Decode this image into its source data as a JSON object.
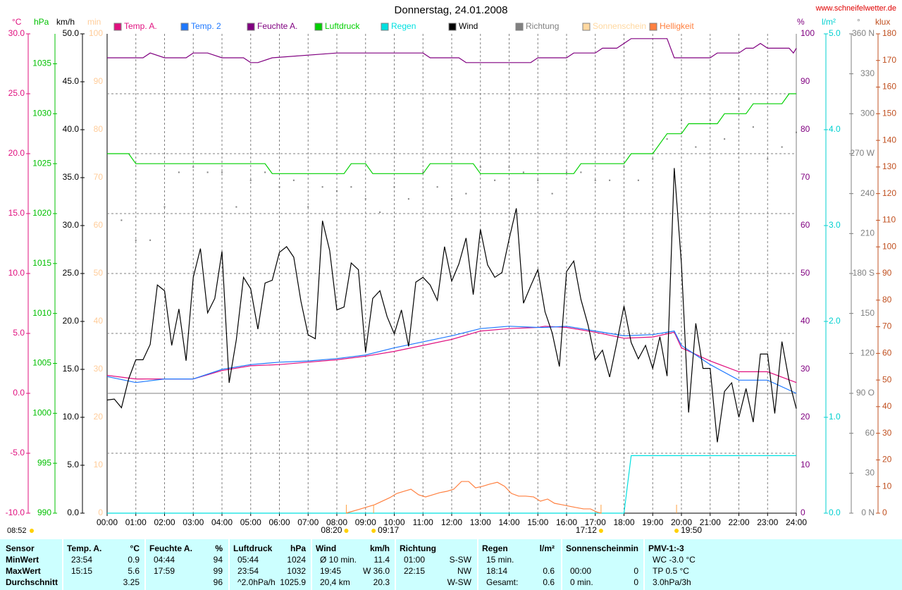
{
  "chart_data": {
    "type": "line",
    "title": "Donnerstag, 24.01.2008",
    "site": "www.schneifelwetter.de",
    "footnote": "08:52",
    "xlim": [
      0,
      24
    ],
    "xticks": [
      {
        "value": 0,
        "label": "00:00"
      },
      {
        "value": 1,
        "label": "01:00"
      },
      {
        "value": 2,
        "label": "02:00"
      },
      {
        "value": 3,
        "label": "03:00"
      },
      {
        "value": 4,
        "label": "04:00"
      },
      {
        "value": 5,
        "label": "05:00"
      },
      {
        "value": 6,
        "label": "06:00"
      },
      {
        "value": 7,
        "label": "07:00"
      },
      {
        "value": 8,
        "label": "08:00"
      },
      {
        "value": 9,
        "label": "09:00"
      },
      {
        "value": 10,
        "label": "10:00"
      },
      {
        "value": 11,
        "label": "11:00"
      },
      {
        "value": 12,
        "label": "12:00"
      },
      {
        "value": 13,
        "label": "13:00"
      },
      {
        "value": 14,
        "label": "14:00"
      },
      {
        "value": 15,
        "label": "15:00"
      },
      {
        "value": 16,
        "label": "16:00"
      },
      {
        "value": 17,
        "label": "17:00"
      },
      {
        "value": 18,
        "label": "18:00"
      },
      {
        "value": 19,
        "label": "19:00"
      },
      {
        "value": 20,
        "label": "20:00"
      },
      {
        "value": 21,
        "label": "21:00"
      },
      {
        "value": 22,
        "label": "22:00"
      },
      {
        "value": 23,
        "label": "23:00"
      },
      {
        "value": 24,
        "label": "24:00"
      }
    ],
    "grid": true,
    "ylabel": "°C",
    "ycolor": "#e0107f",
    "ylim": [
      -10,
      30
    ],
    "yticks": [
      {
        "value": -10,
        "label": "-10.0"
      },
      {
        "value": -5,
        "label": "-5.0"
      },
      {
        "value": 0,
        "label": "0.0"
      },
      {
        "value": 5,
        "label": "5.0"
      },
      {
        "value": 10,
        "label": "10.0"
      },
      {
        "value": 15,
        "label": "15.0"
      },
      {
        "value": 20,
        "label": "20.0"
      },
      {
        "value": 25,
        "label": "25.0"
      },
      {
        "value": 30,
        "label": "30.0"
      }
    ],
    "y2label": "hPa",
    "y2color": "#00c000",
    "y2lim": [
      990,
      1038
    ],
    "y2ticks": [
      990,
      995,
      1000,
      1005,
      1010,
      1015,
      1020,
      1025,
      1030,
      1035
    ],
    "y3label": "km/h",
    "y3color": "#000000",
    "y3lim": [
      0,
      50
    ],
    "y3ticks": [
      {
        "value": 0,
        "label": "0.0"
      },
      {
        "value": 5,
        "label": "5.0"
      },
      {
        "value": 10,
        "label": "10.0"
      },
      {
        "value": 15,
        "label": "15.0"
      },
      {
        "value": 20,
        "label": "20.0"
      },
      {
        "value": 25,
        "label": "25.0"
      },
      {
        "value": 30,
        "label": "30.0"
      },
      {
        "value": 35,
        "label": "35.0"
      },
      {
        "value": 40,
        "label": "40.0"
      },
      {
        "value": 45,
        "label": "45.0"
      },
      {
        "value": 50,
        "label": "50.0"
      }
    ],
    "y4label": "min",
    "y4color": "#ffcc99",
    "y4lim": [
      0,
      100
    ],
    "y4ticks": [
      0,
      10,
      20,
      30,
      40,
      50,
      60,
      70,
      80,
      90,
      100
    ],
    "y5label": "%",
    "y5color": "#800080",
    "y5lim": [
      0,
      100
    ],
    "y5ticks": [
      0,
      10,
      20,
      30,
      40,
      50,
      60,
      70,
      80,
      90,
      100
    ],
    "y6label": "l/m²",
    "y6color": "#00d0d0",
    "y6lim": [
      0,
      5
    ],
    "y6ticks": [
      {
        "value": 0,
        "label": "0.0"
      },
      {
        "value": 1,
        "label": "1.0"
      },
      {
        "value": 2,
        "label": "2.0"
      },
      {
        "value": 3,
        "label": "3.0"
      },
      {
        "value": 4,
        "label": "4.0"
      },
      {
        "value": 5,
        "label": "5.0"
      }
    ],
    "y7label": "°",
    "y7color": "#808080",
    "y7lim": [
      0,
      360
    ],
    "y7ticks": [
      {
        "value": 0,
        "label": "0 N"
      },
      30,
      60,
      {
        "value": 90,
        "label": "90 O"
      },
      120,
      150,
      {
        "value": 180,
        "label": "180 S"
      },
      210,
      240,
      {
        "value": 270,
        "label": "270 W"
      },
      300,
      330,
      {
        "value": 360,
        "label": "360 N"
      }
    ],
    "y8label": "klux",
    "y8color": "#c05020",
    "y8lim": [
      0,
      180
    ],
    "y8ticks": [
      0,
      10,
      20,
      30,
      40,
      50,
      60,
      70,
      80,
      90,
      100,
      110,
      120,
      130,
      140,
      150,
      160,
      170,
      180
    ],
    "annotations": [
      {
        "x": 8.33,
        "label": "08:20"
      },
      {
        "x": 9.28,
        "label": "09:17"
      },
      {
        "x": 17.2,
        "label": "17:12"
      },
      {
        "x": 19.83,
        "label": "19:50"
      }
    ],
    "series": [
      {
        "name": "Temp. A.",
        "color": "#e0107f",
        "axis": "y",
        "x": [
          0,
          1,
          2,
          3,
          4,
          5,
          6,
          7,
          8,
          9,
          10,
          11,
          12,
          13,
          14,
          15,
          15.25,
          16,
          17,
          18,
          19,
          19.75,
          20,
          21,
          22,
          23,
          24
        ],
        "values": [
          1.5,
          1.2,
          1.2,
          1.2,
          1.9,
          2.3,
          2.4,
          2.6,
          2.8,
          3.1,
          3.5,
          4.0,
          4.5,
          5.2,
          5.4,
          5.5,
          5.6,
          5.5,
          5.1,
          4.6,
          4.7,
          5.1,
          3.8,
          2.7,
          1.8,
          1.8,
          0.9
        ]
      },
      {
        "name": "Temp. 2",
        "color": "#1e78ff",
        "axis": "y",
        "x": [
          0,
          1,
          2,
          3,
          4,
          5,
          6,
          7,
          8,
          9,
          10,
          11,
          12,
          13,
          14,
          15,
          15.25,
          16,
          17,
          18,
          19,
          19.75,
          20,
          21,
          22,
          23,
          24
        ],
        "values": [
          1.4,
          0.9,
          1.2,
          1.2,
          2.0,
          2.4,
          2.6,
          2.7,
          2.9,
          3.2,
          3.8,
          4.3,
          4.8,
          5.4,
          5.6,
          5.5,
          5.5,
          5.6,
          5.2,
          4.8,
          4.9,
          5.2,
          4.0,
          2.4,
          1.1,
          1.1,
          0.0
        ]
      },
      {
        "name": "Feuchte A.",
        "color": "#800080",
        "axis": "y5",
        "x": [
          0,
          1.25,
          1.5,
          2,
          2.75,
          3,
          3.5,
          4,
          4.75,
          5,
          5.25,
          5.75,
          8,
          11,
          11.25,
          12.25,
          12.5,
          14.75,
          15,
          16,
          16.25,
          17,
          17.25,
          17.75,
          18,
          18.25,
          19.5,
          19.75,
          21,
          21.25,
          22,
          22.25,
          22.5,
          22.75,
          23,
          23.75,
          23.9,
          24
        ],
        "values": [
          95,
          95,
          96,
          95,
          95,
          96,
          96,
          95,
          95,
          94,
          94,
          95,
          96,
          96,
          95,
          95,
          94,
          94,
          95,
          95,
          96,
          96,
          97,
          97,
          98,
          99,
          99,
          95,
          95,
          96,
          96,
          97,
          97,
          98,
          97,
          97,
          96,
          97
        ]
      },
      {
        "name": "Luftdruck",
        "color": "#00d000",
        "axis": "y2",
        "x": [
          0,
          0.75,
          1,
          5.5,
          5.75,
          8.25,
          8.5,
          9,
          9.25,
          11,
          11.25,
          12.75,
          13,
          16.25,
          16.5,
          18,
          18.25,
          19,
          19.25,
          19.5,
          20,
          20.25,
          21.25,
          21.5,
          22.25,
          22.5,
          23.5,
          23.75,
          24
        ],
        "values": [
          1026,
          1026,
          1025,
          1025,
          1024,
          1024,
          1025,
          1025,
          1024,
          1024,
          1025,
          1025,
          1024,
          1024,
          1025,
          1025,
          1026,
          1026,
          1027,
          1028,
          1028,
          1029,
          1029,
          1030,
          1030,
          1031,
          1031,
          1032,
          1032
        ]
      },
      {
        "name": "Regen",
        "color": "#00e0e0",
        "axis": "y6",
        "x": [
          0,
          18,
          18.25,
          24
        ],
        "values": [
          0,
          0,
          0.6,
          0.6
        ]
      },
      {
        "name": "Wind",
        "color": "#000000",
        "axis": "y3",
        "x": [
          0,
          0.25,
          0.5,
          0.75,
          1,
          1.25,
          1.5,
          1.75,
          2,
          2.25,
          2.5,
          2.75,
          3,
          3.25,
          3.5,
          3.75,
          4,
          4.25,
          4.5,
          4.75,
          5,
          5.25,
          5.5,
          5.75,
          6,
          6.25,
          6.5,
          6.75,
          7,
          7.25,
          7.5,
          7.75,
          8,
          8.25,
          8.5,
          8.75,
          9,
          9.25,
          9.5,
          9.75,
          10,
          10.25,
          10.5,
          10.75,
          11,
          11.25,
          11.5,
          11.75,
          12,
          12.25,
          12.5,
          12.75,
          13,
          13.25,
          13.5,
          13.75,
          14,
          14.25,
          14.5,
          14.75,
          15,
          15.25,
          15.5,
          15.75,
          16,
          16.25,
          16.5,
          16.75,
          17,
          17.25,
          17.5,
          17.75,
          18,
          18.25,
          18.5,
          18.75,
          19,
          19.25,
          19.5,
          19.75,
          20,
          20.25,
          20.5,
          20.75,
          21,
          21.25,
          21.5,
          21.75,
          22,
          22.25,
          22.5,
          22.75,
          23,
          23.25,
          23.5,
          23.75,
          24
        ],
        "values": [
          11.8,
          11.9,
          11.0,
          14.0,
          16.0,
          16.0,
          17.6,
          23.8,
          23.2,
          17.5,
          21.3,
          15.9,
          24.6,
          27.6,
          20.9,
          22.4,
          27.3,
          13.6,
          18.1,
          24.6,
          23.4,
          19.2,
          24.0,
          24.3,
          27.2,
          27.8,
          26.7,
          22.1,
          18.6,
          18.2,
          30.5,
          27.4,
          21.2,
          21.5,
          26.1,
          25.4,
          16.8,
          22.4,
          23.2,
          20.5,
          18.7,
          21.2,
          17.4,
          24.1,
          24.6,
          23.8,
          22.2,
          27.8,
          24.2,
          26.0,
          28.7,
          22.8,
          29.6,
          25.9,
          24.6,
          25.1,
          28.6,
          31.8,
          21.9,
          23.7,
          25.4,
          21.0,
          18.8,
          15.3,
          25.2,
          26.3,
          22.3,
          19.6,
          16.0,
          17.0,
          14.2,
          17.8,
          21.6,
          17.8,
          16.1,
          17.5,
          15.1,
          18.4,
          14.3,
          36.0,
          26.0,
          10.5,
          19.8,
          15.1,
          15.1,
          7.4,
          12.7,
          13.6,
          10.0,
          13.0,
          9.5,
          16.6,
          16.6,
          10.4,
          17.9,
          13.8,
          10.9
        ]
      },
      {
        "name": "Richtung",
        "color": "#808080",
        "axis": "y7",
        "type": "scatter",
        "x": [
          0,
          0.5,
          1,
          1.5,
          2,
          2.5,
          3,
          3.5,
          4,
          4.5,
          5,
          5.5,
          6,
          6.5,
          7,
          7.5,
          8,
          8.5,
          9,
          9.5,
          10,
          10.5,
          11,
          11.5,
          12,
          12.5,
          13,
          13.5,
          14,
          14.5,
          15,
          15.5,
          16,
          16.5,
          17,
          17.5,
          18,
          18.5,
          19,
          19.5,
          20,
          20.5,
          21,
          21.5,
          22,
          22.5,
          23,
          23.5,
          24
        ],
        "values": [
          215,
          220,
          205,
          205,
          230,
          256,
          260,
          256,
          256,
          230,
          250,
          256,
          245,
          250,
          230,
          245,
          242,
          245,
          236,
          226,
          245,
          236,
          256,
          245,
          236,
          240,
          260,
          250,
          260,
          256,
          250,
          240,
          256,
          256,
          250,
          250,
          260,
          250,
          266,
          281,
          295,
          275,
          295,
          281,
          311,
          290,
          266,
          275,
          286
        ]
      },
      {
        "name": "Sonnenschein",
        "color": "#ffd8a0",
        "axis": "y4",
        "x": [],
        "values": []
      },
      {
        "name": "Helligkeit",
        "color": "#ff8040",
        "axis": "y8",
        "x": [
          8.32,
          8.83,
          9.32,
          9.84,
          10.09,
          10.33,
          10.58,
          10.85,
          11.09,
          11.34,
          11.58,
          11.83,
          12.07,
          12.34,
          12.59,
          12.83,
          13.08,
          13.32,
          13.59,
          13.84,
          14.08,
          14.33,
          14.57,
          14.85,
          15.09,
          15.34,
          15.58,
          15.83,
          16.1,
          16.34,
          16.59,
          16.83,
          17.08,
          17.22
        ],
        "values": [
          0,
          1.6,
          3.2,
          5.8,
          7.4,
          8.2,
          9.0,
          6.9,
          6.1,
          6.9,
          7.7,
          8.2,
          9.0,
          11.9,
          11.9,
          9.5,
          10.1,
          10.9,
          11.6,
          10.1,
          7.4,
          6.4,
          6.4,
          6.1,
          4.5,
          5.3,
          3.7,
          3.2,
          2.6,
          2.1,
          1.6,
          1.6,
          0.3,
          0
        ]
      }
    ]
  },
  "table": {
    "columns": [
      {
        "name": "Sensor"
      },
      {
        "name": "Temp. A.",
        "unit": "°C"
      },
      {
        "name": "Feuchte A.",
        "unit": "%"
      },
      {
        "name": "Luftdruck",
        "unit": "hPa"
      },
      {
        "name": "Wind",
        "unit": "km/h"
      },
      {
        "name": "Richtung"
      },
      {
        "name": "Regen",
        "unit": "l/m²"
      },
      {
        "name": "Sonnenschein",
        "unit": "min"
      },
      {
        "name": "PMV-1:-3"
      }
    ],
    "rows": [
      {
        "name": "MinWert",
        "cells": [
          {
            "time": "23:54",
            "value": "0.9"
          },
          {
            "time": "04:44",
            "value": "94"
          },
          {
            "time": "05:44",
            "value": "1024"
          },
          {
            "time": "Ø 10 min.",
            "value": "11.4"
          },
          {
            "time": "01:00",
            "value": "S-SW"
          },
          {
            "time": "15 min."
          },
          {},
          {
            "time": "WC -3.0 °C"
          }
        ]
      },
      {
        "name": "MaxWert",
        "cells": [
          {
            "time": "15:15",
            "value": "5.6"
          },
          {
            "time": "17:59",
            "value": "99"
          },
          {
            "time": "23:54",
            "value": "1032"
          },
          {
            "time": "19:45",
            "value": "W 36.0"
          },
          {
            "time": "22:15",
            "value": "NW"
          },
          {
            "time": "18:14",
            "value": "0.6"
          },
          {
            "time": "00:00",
            "value": "0"
          },
          {
            "time": "TP 0.5 °C"
          }
        ]
      },
      {
        "name": "Durchschnitt",
        "cells": [
          {
            "value": "3.25"
          },
          {
            "value": "96"
          },
          {
            "time": "^2.0hPa/h",
            "value": "1025.9"
          },
          {
            "time": "20,4 km",
            "value": "20.3"
          },
          {
            "value": "W-SW"
          },
          {
            "time": "Gesamt:",
            "value": "0.6"
          },
          {
            "time": "0 min.",
            "value": "0"
          },
          {
            "time": "3.0hPa/3h"
          }
        ]
      }
    ]
  }
}
